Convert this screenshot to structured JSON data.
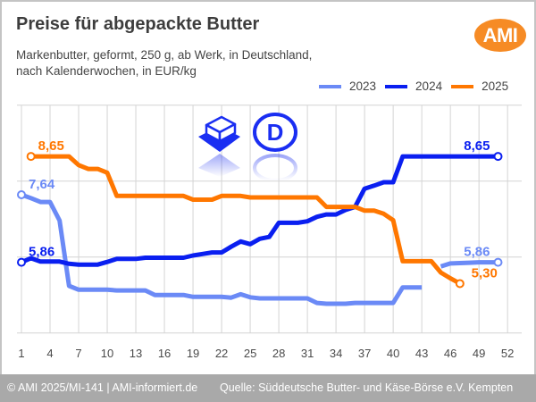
{
  "header": {
    "title": "Preise für abgepackte Butter",
    "subtitle_line1": "Markenbutter, geformt, 250 g, ab Werk, in Deutschland,",
    "subtitle_line2": "nach Kalenderwochen, in EUR/kg",
    "logo_text": "AMI",
    "logo_color": "#f68b25"
  },
  "icons": [
    "butter-block-icon",
    "country-d-germany-icon"
  ],
  "footer": {
    "left": "© AMI 2025/MI-141 | AMI-informiert.de",
    "right": "Quelle: Süddeutsche Butter- und Käse-Börse e.V. Kempten"
  },
  "chart_data": {
    "type": "line",
    "title": "Preise für abgepackte Butter",
    "xlabel": "Kalenderwoche",
    "ylabel": "EUR/kg",
    "xlim": [
      1,
      52
    ],
    "ylim": [
      4,
      10
    ],
    "yticks": [
      4,
      6,
      8,
      10
    ],
    "y_tick_labels_shown": false,
    "xticks": [
      1,
      4,
      7,
      10,
      13,
      16,
      19,
      22,
      25,
      28,
      31,
      34,
      37,
      40,
      43,
      46,
      49,
      52
    ],
    "grid": true,
    "legend_position": "top-right",
    "series": [
      {
        "name": "2023",
        "color": "#6b8af6",
        "start_week": 1,
        "values": [
          7.64,
          7.55,
          7.45,
          7.45,
          6.96,
          5.24,
          5.14,
          5.14,
          5.14,
          5.14,
          5.12,
          5.12,
          5.12,
          5.12,
          5.0,
          5.0,
          5.0,
          5.0,
          4.95,
          4.95,
          4.95,
          4.95,
          4.93,
          5.02,
          4.94,
          4.91,
          4.91,
          4.91,
          4.91,
          4.91,
          4.91,
          4.79,
          4.77,
          4.77,
          4.77,
          4.79,
          4.79,
          4.79,
          4.79,
          4.79,
          5.2,
          5.2,
          5.2,
          null,
          5.75,
          5.83,
          5.84,
          5.85,
          5.86,
          5.86,
          5.86
        ],
        "labels": [
          {
            "week": 1,
            "text": "7,64"
          },
          {
            "week": 51,
            "text": "5,86"
          }
        ]
      },
      {
        "name": "2024",
        "color": "#0a1ff0",
        "start_week": 1,
        "values": [
          5.86,
          5.97,
          5.88,
          5.88,
          5.88,
          5.82,
          5.8,
          5.8,
          5.8,
          5.87,
          5.95,
          5.95,
          5.95,
          5.98,
          5.98,
          5.98,
          5.98,
          5.98,
          6.04,
          6.08,
          6.12,
          6.12,
          6.27,
          6.41,
          6.34,
          6.48,
          6.53,
          6.9,
          6.9,
          6.9,
          6.94,
          7.06,
          7.12,
          7.12,
          7.24,
          7.32,
          7.8,
          7.88,
          7.97,
          7.97,
          8.65,
          8.65,
          8.65,
          8.65,
          8.65,
          8.65,
          8.65,
          8.65,
          8.65,
          8.65,
          8.65
        ],
        "labels": [
          {
            "week": 1,
            "text": "5,86"
          },
          {
            "week": 51,
            "text": "8,65"
          }
        ]
      },
      {
        "name": "2025",
        "color": "#ff7700",
        "start_week": 2,
        "values": [
          8.65,
          8.65,
          8.65,
          8.65,
          8.65,
          8.42,
          8.32,
          8.32,
          8.22,
          7.61,
          7.61,
          7.61,
          7.61,
          7.61,
          7.61,
          7.61,
          7.61,
          7.51,
          7.51,
          7.51,
          7.61,
          7.61,
          7.61,
          7.57,
          7.57,
          7.57,
          7.57,
          7.57,
          7.57,
          7.57,
          7.57,
          7.32,
          7.32,
          7.32,
          7.32,
          7.22,
          7.22,
          7.14,
          6.97,
          5.89,
          5.89,
          5.89,
          5.89,
          5.59,
          5.44,
          5.3
        ],
        "labels": [
          {
            "week": 2,
            "text": "8,65"
          },
          {
            "week": 47,
            "text": "5,30"
          }
        ]
      }
    ]
  }
}
